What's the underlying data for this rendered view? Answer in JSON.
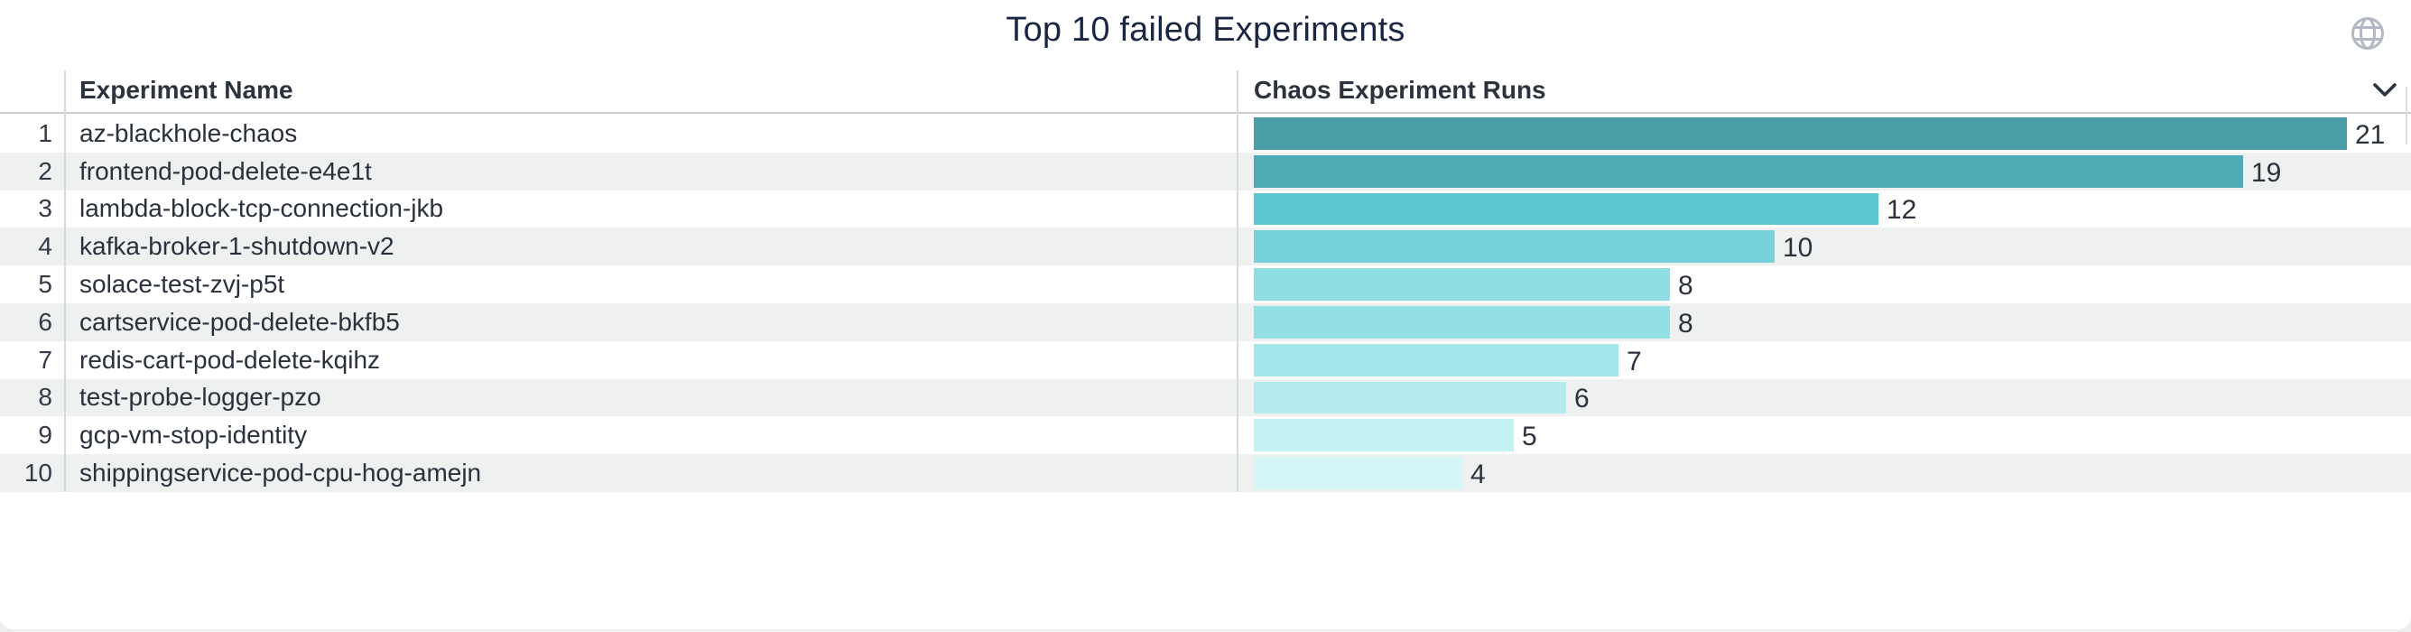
{
  "panel": {
    "title": "Top 10 failed Experiments"
  },
  "table": {
    "columns": {
      "name": "Experiment Name",
      "runs": "Chaos Experiment Runs"
    },
    "rows": [
      {
        "rank": "1",
        "name": "az-blackhole-chaos",
        "runs": "21"
      },
      {
        "rank": "2",
        "name": "frontend-pod-delete-e4e1t",
        "runs": "19"
      },
      {
        "rank": "3",
        "name": "lambda-block-tcp-connection-jkb",
        "runs": "12"
      },
      {
        "rank": "4",
        "name": "kafka-broker-1-shutdown-v2",
        "runs": "10"
      },
      {
        "rank": "5",
        "name": "solace-test-zvj-p5t",
        "runs": "8"
      },
      {
        "rank": "6",
        "name": "cartservice-pod-delete-bkfb5",
        "runs": "8"
      },
      {
        "rank": "7",
        "name": "redis-cart-pod-delete-kqihz",
        "runs": "7"
      },
      {
        "rank": "8",
        "name": "test-probe-logger-pzo",
        "runs": "6"
      },
      {
        "rank": "9",
        "name": "gcp-vm-stop-identity",
        "runs": "5"
      },
      {
        "rank": "10",
        "name": "shippingservice-pod-cpu-hog-amejn",
        "runs": "4"
      }
    ]
  },
  "chart_data": {
    "type": "bar",
    "orientation": "horizontal",
    "title": "Top 10 failed Experiments",
    "xlabel": "Chaos Experiment Runs",
    "ylabel": "Experiment Name",
    "categories": [
      "az-blackhole-chaos",
      "frontend-pod-delete-e4e1t",
      "lambda-block-tcp-connection-jkb",
      "kafka-broker-1-shutdown-v2",
      "solace-test-zvj-p5t",
      "cartservice-pod-delete-bkfb5",
      "redis-cart-pod-delete-kqihz",
      "test-probe-logger-pzo",
      "gcp-vm-stop-identity",
      "shippingservice-pod-cpu-hog-amejn"
    ],
    "values": [
      21,
      19,
      12,
      10,
      8,
      8,
      7,
      6,
      5,
      4
    ],
    "xlim": [
      0,
      21
    ],
    "grid": false,
    "legend": false,
    "value_labels": true,
    "bar_colors": [
      "#4A9FA9",
      "#4FACB6",
      "#5CC6D1",
      "#75D2DA",
      "#8EDEE3",
      "#92DFE4",
      "#A4E6EA",
      "#B3EBEE",
      "#C5F1F3",
      "#D4F6F8"
    ]
  },
  "icons": {
    "globe": "globe-icon",
    "chevron": "chevron-down-icon"
  },
  "colors": {
    "title_text": "#1A2742",
    "header_text": "#2C333D",
    "row_text": "#2A313C",
    "stripe": "#EFF1F1",
    "divider": "#D7DADD",
    "globe_icon": "#B3B9C3",
    "chevron_icon": "#2B3440",
    "panel_bg": "#FFFFFF"
  }
}
